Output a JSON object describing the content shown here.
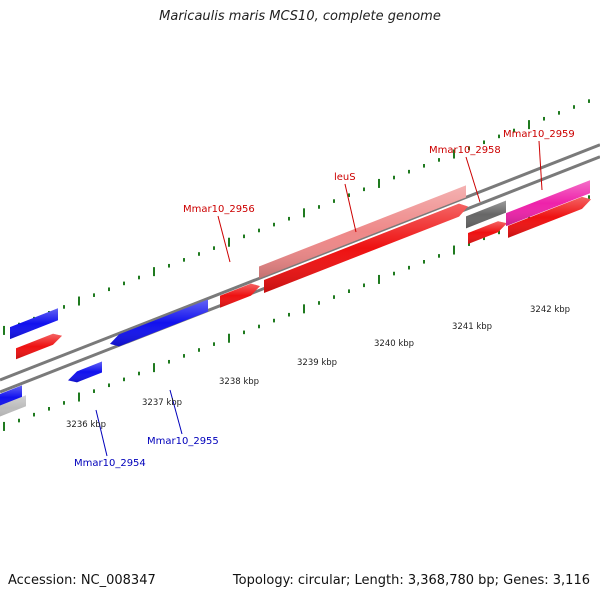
{
  "title": "Maricaulis maris MCS10, complete genome",
  "footer": {
    "accession": "Accession: NC_008347",
    "topology": "Topology: circular; Length: 3,368,780 bp; Genes: 3,116"
  },
  "colors": {
    "backbone": "#7a7a7a",
    "tick": "#1f7a1f",
    "gene_red": "#ee1111",
    "gene_blue": "#1111ee",
    "gene_pink": "#ee8888",
    "gene_magenta": "#ee22aa",
    "gene_gray": "#666666",
    "gene_lightgray": "#bbbbbb",
    "label_red": "#cc0000",
    "label_blue": "#0000bb"
  },
  "kbp_labels": [
    "3236 kbp",
    "3237 kbp",
    "3238 kbp",
    "3239 kbp",
    "3240 kbp",
    "3241 kbp",
    "3242 kbp"
  ],
  "gene_labels": [
    {
      "text": "Mmar10_2954",
      "color": "blue"
    },
    {
      "text": "Mmar10_2955",
      "color": "blue"
    },
    {
      "text": "Mmar10_2956",
      "color": "red"
    },
    {
      "text": "leuS",
      "color": "red"
    },
    {
      "text": "Mmar10_2958",
      "color": "red"
    },
    {
      "text": "Mmar10_2959",
      "color": "red"
    }
  ]
}
